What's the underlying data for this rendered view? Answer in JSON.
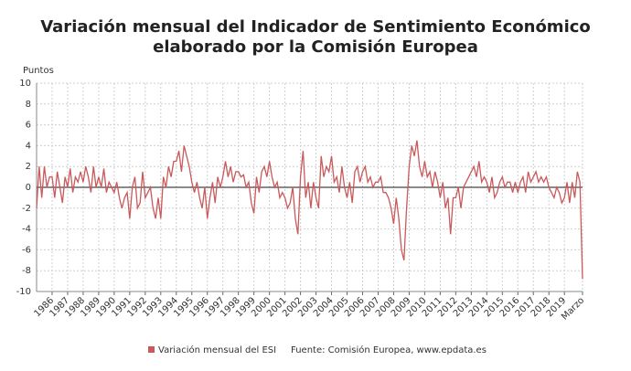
{
  "chart_data": {
    "type": "line",
    "title": [
      "Variación mensual del Indicador de Sentimiento Económico",
      "elaborado por la Comisión Europea"
    ],
    "y_label": "Puntos",
    "source": "Fuente: Comisión Europea, www.epdata.es",
    "categories": [
      null,
      null,
      null,
      null,
      null,
      null,
      "1986",
      null,
      null,
      null,
      null,
      null,
      "1987",
      null,
      null,
      null,
      null,
      null,
      "1988",
      null,
      null,
      null,
      null,
      null,
      "1989",
      null,
      null,
      null,
      null,
      null,
      "1990",
      null,
      null,
      null,
      null,
      null,
      "1991",
      null,
      null,
      null,
      null,
      null,
      "1992",
      null,
      null,
      null,
      null,
      null,
      "1993",
      null,
      null,
      null,
      null,
      null,
      "1994",
      null,
      null,
      null,
      null,
      null,
      "1995",
      null,
      null,
      null,
      null,
      null,
      "1996",
      null,
      null,
      null,
      null,
      null,
      "1997",
      null,
      null,
      null,
      null,
      null,
      "1998",
      null,
      null,
      null,
      null,
      null,
      "1999",
      null,
      null,
      null,
      null,
      null,
      "2000",
      null,
      null,
      null,
      null,
      null,
      "2001",
      null,
      null,
      null,
      null,
      null,
      "2002",
      null,
      null,
      null,
      null,
      null,
      "2003",
      null,
      null,
      null,
      null,
      null,
      "2004",
      null,
      null,
      null,
      null,
      null,
      "2005",
      null,
      null,
      null,
      null,
      null,
      "2006",
      null,
      null,
      null,
      null,
      null,
      "2007",
      null,
      null,
      null,
      null,
      null,
      "2008",
      null,
      null,
      null,
      null,
      null,
      "2009",
      null,
      null,
      null,
      null,
      null,
      "2010",
      null,
      null,
      null,
      null,
      null,
      "2011",
      null,
      null,
      null,
      null,
      null,
      "2012",
      null,
      null,
      null,
      null,
      null,
      "2013",
      null,
      null,
      null,
      null,
      null,
      "2014",
      null,
      null,
      null,
      null,
      null,
      "2015",
      null,
      null,
      null,
      null,
      null,
      "2016",
      null,
      null,
      null,
      null,
      null,
      "2017",
      null,
      null,
      null,
      null,
      null,
      "2018",
      null,
      null,
      null,
      null,
      null,
      "2019",
      null,
      null,
      null,
      null,
      null,
      null,
      "Marzo"
    ],
    "series": [
      {
        "name": "Variación mensual del ESI",
        "color": "#c9595a",
        "values": [
          -2,
          2,
          -1,
          2,
          0,
          1,
          1,
          -1,
          1.5,
          0,
          -1.5,
          1,
          0,
          1.8,
          -0.5,
          1,
          0.5,
          1.5,
          0.5,
          2,
          1,
          -0.5,
          2,
          0,
          1,
          0,
          1.8,
          -0.5,
          0.5,
          0,
          -0.5,
          0.5,
          -1,
          -2,
          -1,
          -0.5,
          -3,
          0,
          1,
          -2,
          -1.5,
          1.5,
          -1,
          -0.5,
          0,
          -2,
          -3,
          -1,
          -3,
          1,
          0,
          2,
          1,
          2.5,
          2.5,
          3.5,
          1.5,
          4,
          3,
          2,
          0.5,
          -0.5,
          0.5,
          -1,
          -2,
          0,
          -3,
          -1,
          0.5,
          -1.5,
          1,
          0,
          1,
          2.5,
          1,
          2,
          0.5,
          1.5,
          1.5,
          1,
          1.2,
          0,
          0.5,
          -1.5,
          -2.5,
          1,
          -0.5,
          1.5,
          2,
          1,
          2.5,
          1,
          0,
          0.5,
          -1,
          -0.5,
          -1,
          -2,
          -1.5,
          0,
          -3,
          -4.5,
          1,
          3.5,
          -1,
          0.5,
          -2,
          0.5,
          -1,
          -2,
          3,
          1,
          2,
          1.5,
          3,
          0.5,
          1,
          -0.5,
          2,
          0,
          -1,
          0.5,
          -1.5,
          1.5,
          2,
          0.5,
          1.5,
          2,
          0.5,
          1,
          0,
          0.5,
          0.5,
          1,
          -0.5,
          -0.5,
          -1,
          -2,
          -3.5,
          -1,
          -3,
          -6,
          -7,
          -2,
          2,
          4,
          3,
          4.5,
          2,
          1,
          2.5,
          1,
          1.5,
          0,
          1.5,
          0.5,
          -1,
          0.5,
          -2,
          -1,
          -4.5,
          -1,
          -1,
          0,
          -2,
          0,
          0.5,
          1,
          1.5,
          2,
          1,
          2.5,
          0.5,
          1,
          0.5,
          -0.5,
          1,
          -1,
          -0.5,
          0.5,
          1,
          0,
          0.5,
          0.5,
          -0.5,
          0.5,
          -0.5,
          0.5,
          1,
          -0.5,
          1.5,
          0.5,
          1,
          1.5,
          0.5,
          1,
          0.5,
          1,
          0,
          -0.5,
          -1,
          0,
          -0.5,
          -1.5,
          -1,
          0.5,
          -1.5,
          0.5,
          -1,
          1.5,
          0.5,
          -8.8
        ]
      }
    ],
    "ylim": [
      -10,
      10
    ],
    "yticks": [
      -10,
      -8,
      -6,
      -4,
      -2,
      0,
      2,
      4,
      6,
      8,
      10
    ],
    "grid": true
  }
}
